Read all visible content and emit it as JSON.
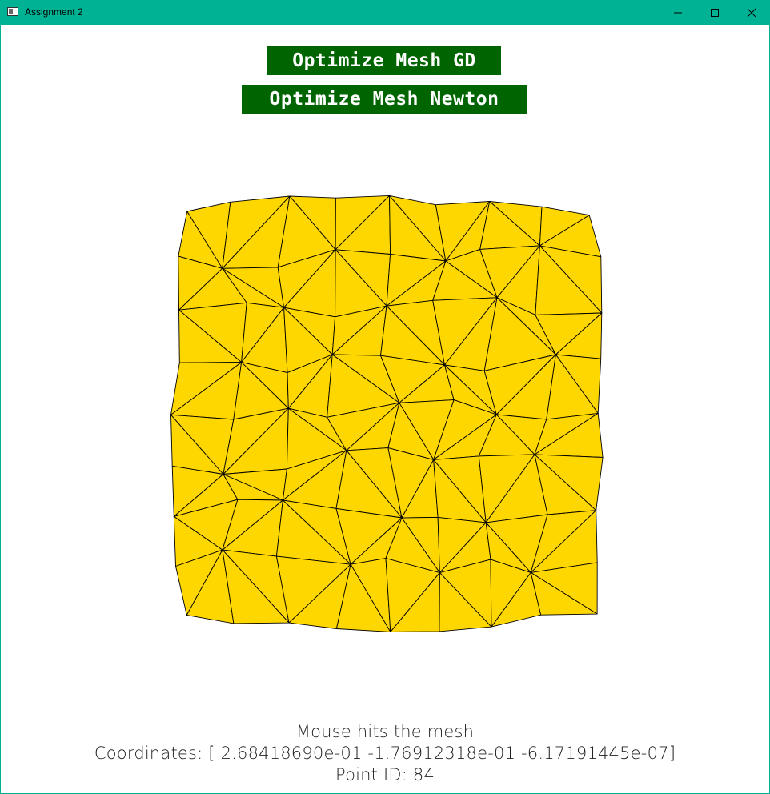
{
  "window": {
    "title": "Assignment 2",
    "accent_color": "#00b294",
    "controls": [
      "minimize-icon",
      "maximize-icon",
      "close-icon"
    ]
  },
  "buttons": {
    "optimize_gd": "Optimize Mesh GD",
    "optimize_newton": "Optimize Mesh Newton",
    "color": "#006400"
  },
  "mesh": {
    "fill_color": "#ffd700",
    "edge_color": "#000000"
  },
  "status": {
    "line1": "Mouse hits the mesh",
    "line2": "Coordinates: [ 2.68418690e-01 -1.76912318e-01 -6.17191445e-07]",
    "line3": "Point ID: 84"
  }
}
